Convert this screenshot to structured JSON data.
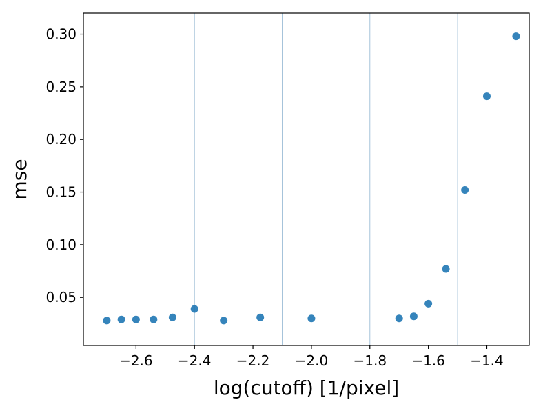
{
  "chart_data": {
    "type": "scatter",
    "title": "",
    "xlabel": "log(cutoff) [1/pixel]",
    "ylabel": "mse",
    "xlim": [
      -2.78,
      -1.255
    ],
    "ylim": [
      0.0043,
      0.32
    ],
    "x_ticks": [
      -2.6,
      -2.4,
      -2.2,
      -2.0,
      -1.8,
      -1.6,
      -1.4
    ],
    "x_tick_labels": [
      "−2.6",
      "−2.4",
      "−2.2",
      "−2.0",
      "−1.8",
      "−1.6",
      "−1.4"
    ],
    "y_ticks": [
      0.05,
      0.1,
      0.15,
      0.2,
      0.25,
      0.3
    ],
    "y_tick_labels": [
      "0.05",
      "0.10",
      "0.15",
      "0.20",
      "0.25",
      "0.30"
    ],
    "vertical_lines": [
      -2.4,
      -2.1,
      -1.8,
      -1.5
    ],
    "grid": false,
    "legend": "none",
    "colors": {
      "point": "#1f77b4",
      "vline": "#a6c3da",
      "axis": "#000000",
      "background": "#ffffff"
    },
    "series": [
      {
        "x": [
          -2.7,
          -2.65,
          -2.6,
          -2.54,
          -2.475,
          -2.4,
          -2.3,
          -2.175,
          -2.0,
          -1.7,
          -1.65,
          -1.6,
          -1.54,
          -1.475,
          -1.4,
          -1.3
        ],
        "y": [
          0.028,
          0.029,
          0.029,
          0.029,
          0.031,
          0.039,
          0.028,
          0.031,
          0.03,
          0.03,
          0.032,
          0.044,
          0.077,
          0.152,
          0.241,
          0.298
        ]
      }
    ]
  }
}
